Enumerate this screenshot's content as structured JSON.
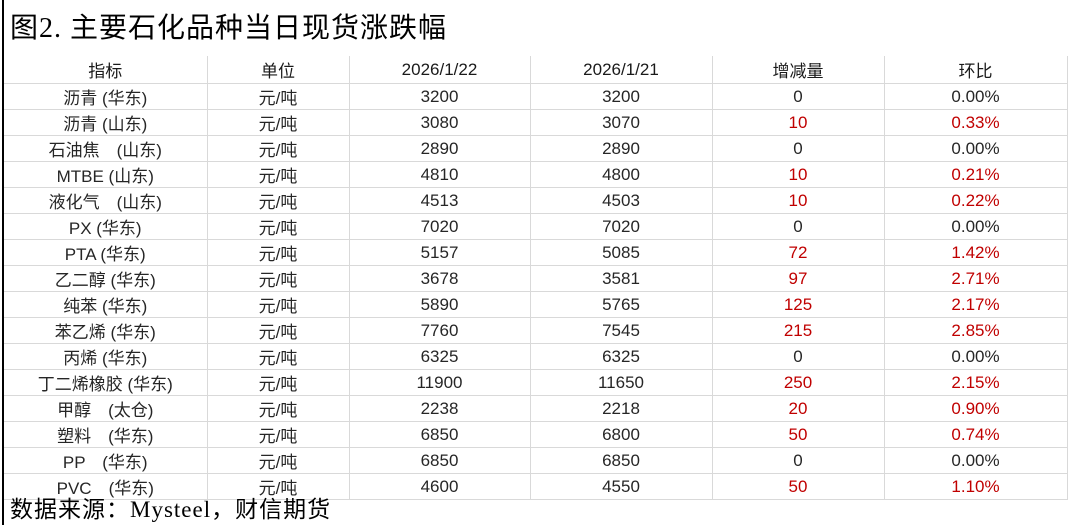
{
  "title": "图2. 主要石化品种当日现货涨跌幅",
  "source": "数据来源：Mysteel，财信期货",
  "colors": {
    "text": "#262626",
    "accent_red": "#c00000",
    "gridline": "#d9d9d9",
    "left_rule": "#000000"
  },
  "table": {
    "columns": [
      "指标",
      "单位",
      "2026/1/22",
      "2026/1/21",
      "增减量",
      "环比"
    ],
    "rows": [
      {
        "cells": [
          "沥青 (华东)",
          "元/吨",
          "3200",
          "3200",
          "0",
          "0.00%"
        ],
        "changed": false
      },
      {
        "cells": [
          "沥青 (山东)",
          "元/吨",
          "3080",
          "3070",
          "10",
          "0.33%"
        ],
        "changed": true
      },
      {
        "cells": [
          "石油焦　(山东)",
          "元/吨",
          "2890",
          "2890",
          "0",
          "0.00%"
        ],
        "changed": false
      },
      {
        "cells": [
          "MTBE (山东)",
          "元/吨",
          "4810",
          "4800",
          "10",
          "0.21%"
        ],
        "changed": true
      },
      {
        "cells": [
          "液化气　(山东)",
          "元/吨",
          "4513",
          "4503",
          "10",
          "0.22%"
        ],
        "changed": true
      },
      {
        "cells": [
          "PX (华东)",
          "元/吨",
          "7020",
          "7020",
          "0",
          "0.00%"
        ],
        "changed": false
      },
      {
        "cells": [
          "PTA (华东)",
          "元/吨",
          "5157",
          "5085",
          "72",
          "1.42%"
        ],
        "changed": true
      },
      {
        "cells": [
          "乙二醇 (华东)",
          "元/吨",
          "3678",
          "3581",
          "97",
          "2.71%"
        ],
        "changed": true
      },
      {
        "cells": [
          "纯苯 (华东)",
          "元/吨",
          "5890",
          "5765",
          "125",
          "2.17%"
        ],
        "changed": true
      },
      {
        "cells": [
          "苯乙烯 (华东)",
          "元/吨",
          "7760",
          "7545",
          "215",
          "2.85%"
        ],
        "changed": true
      },
      {
        "cells": [
          "丙烯 (华东)",
          "元/吨",
          "6325",
          "6325",
          "0",
          "0.00%"
        ],
        "changed": false
      },
      {
        "cells": [
          "丁二烯橡胶 (华东)",
          "元/吨",
          "11900",
          "11650",
          "250",
          "2.15%"
        ],
        "changed": true
      },
      {
        "cells": [
          "甲醇　(太仓)",
          "元/吨",
          "2238",
          "2218",
          "20",
          "0.90%"
        ],
        "changed": true
      },
      {
        "cells": [
          "塑料　(华东)",
          "元/吨",
          "6850",
          "6800",
          "50",
          "0.74%"
        ],
        "changed": true
      },
      {
        "cells": [
          "PP　(华东)",
          "元/吨",
          "6850",
          "6850",
          "0",
          "0.00%"
        ],
        "changed": false
      },
      {
        "cells": [
          "PVC　(华东)",
          "元/吨",
          "4600",
          "4550",
          "50",
          "1.10%"
        ],
        "changed": true
      }
    ]
  },
  "chart_data": {
    "type": "table",
    "title": "图2. 主要石化品种当日现货涨跌幅",
    "columns": [
      "指标",
      "单位",
      "2026/1/22",
      "2026/1/21",
      "增减量",
      "环比"
    ],
    "rows": [
      [
        "沥青 (华东)",
        "元/吨",
        3200,
        3200,
        0,
        "0.00%"
      ],
      [
        "沥青 (山东)",
        "元/吨",
        3080,
        3070,
        10,
        "0.33%"
      ],
      [
        "石油焦 (山东)",
        "元/吨",
        2890,
        2890,
        0,
        "0.00%"
      ],
      [
        "MTBE (山东)",
        "元/吨",
        4810,
        4800,
        10,
        "0.21%"
      ],
      [
        "液化气 (山东)",
        "元/吨",
        4513,
        4503,
        10,
        "0.22%"
      ],
      [
        "PX (华东)",
        "元/吨",
        7020,
        7020,
        0,
        "0.00%"
      ],
      [
        "PTA (华东)",
        "元/吨",
        5157,
        5085,
        72,
        "1.42%"
      ],
      [
        "乙二醇 (华东)",
        "元/吨",
        3678,
        3581,
        97,
        "2.71%"
      ],
      [
        "纯苯 (华东)",
        "元/吨",
        5890,
        5765,
        125,
        "2.17%"
      ],
      [
        "苯乙烯 (华东)",
        "元/吨",
        7760,
        7545,
        215,
        "2.85%"
      ],
      [
        "丙烯 (华东)",
        "元/吨",
        6325,
        6325,
        0,
        "0.00%"
      ],
      [
        "丁二烯橡胶 (华东)",
        "元/吨",
        11900,
        11650,
        250,
        "2.15%"
      ],
      [
        "甲醇 (太仓)",
        "元/吨",
        2238,
        2218,
        20,
        "0.90%"
      ],
      [
        "塑料 (华东)",
        "元/吨",
        6850,
        6800,
        50,
        "0.74%"
      ],
      [
        "PP (华东)",
        "元/吨",
        6850,
        6850,
        0,
        "0.00%"
      ],
      [
        "PVC (华东)",
        "元/吨",
        4600,
        4550,
        50,
        "1.10%"
      ]
    ]
  }
}
